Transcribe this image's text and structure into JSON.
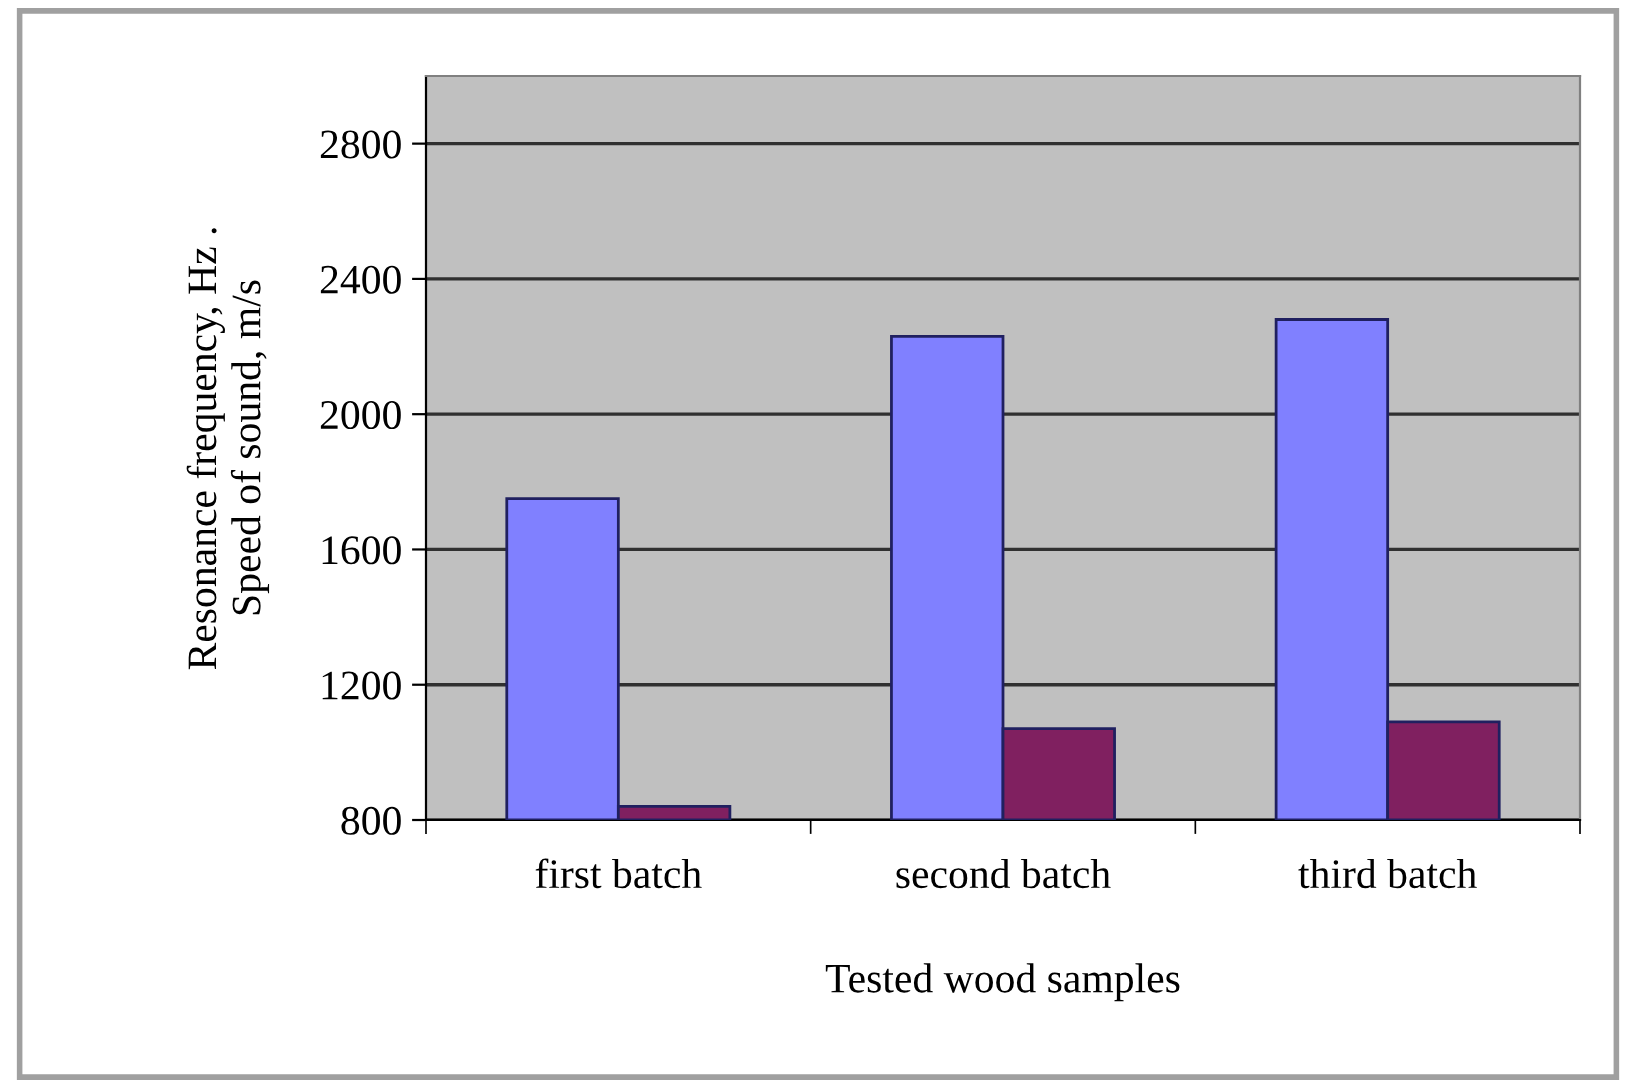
{
  "chart_data": {
    "type": "bar",
    "xlabel": "Tested wood samples",
    "ylabel": "Resonance frequency, Hz .\nSpeed of sound, m/s",
    "categories": [
      "first batch",
      "second batch",
      "third batch"
    ],
    "series": [
      {
        "color": "#8080ff",
        "values": [
          1750,
          2230,
          2280
        ]
      },
      {
        "color": "#802060",
        "values": [
          840,
          1070,
          1090
        ]
      }
    ],
    "ylim": [
      800,
      3000
    ],
    "yticks": [
      800,
      1200,
      1600,
      2000,
      2400,
      2800
    ],
    "grid": "y",
    "legend": false
  }
}
